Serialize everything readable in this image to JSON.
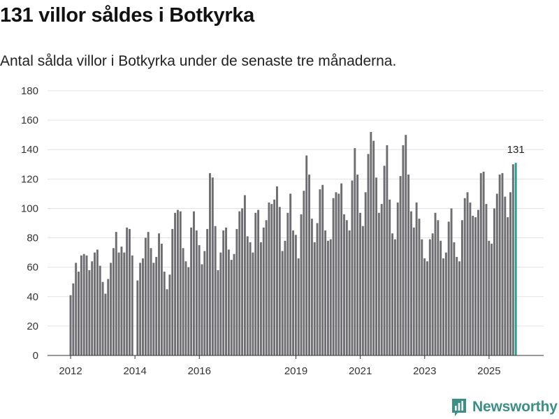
{
  "chart_data": {
    "type": "bar",
    "title": "131 villor såldes i Botkyrka",
    "subtitle": "Antal sålda villor i Botkyrka under de senaste tre månaderna.",
    "xlabel": "",
    "ylabel": "",
    "ylim": [
      0,
      180
    ],
    "yticks": [
      0,
      20,
      40,
      60,
      80,
      100,
      120,
      140,
      160,
      180
    ],
    "xticks": [
      "2012",
      "2014",
      "2016",
      "2019",
      "2021",
      "2023",
      "2025"
    ],
    "grid": true,
    "colors": {
      "bar": "#6e6d72",
      "highlight": "#2a9d8f",
      "grid": "#e3e3e3",
      "axis": "#333333"
    },
    "highlight_label": "131",
    "series": [
      {
        "name": "",
        "segments": [
          {
            "start": 2012.0,
            "values": [
              41,
              49,
              63,
              57,
              68,
              69,
              68,
              58,
              64,
              70,
              72,
              61,
              50,
              42,
              52,
              63,
              73,
              84,
              70,
              74,
              70,
              87,
              86,
              68
            ]
          },
          {
            "start": 2014.08,
            "values": [
              51,
              63,
              66,
              80,
              84,
              73,
              63,
              67,
              83,
              76,
              57,
              45,
              55,
              86,
              97,
              99,
              98,
              73,
              64,
              60,
              87,
              98,
              85,
              75,
              62,
              71,
              86,
              124,
              121,
              88,
              58,
              70,
              85,
              87,
              72,
              65,
              69,
              86,
              98,
              100,
              109,
              81,
              77,
              70,
              97,
              99,
              77,
              87,
              92,
              104,
              103,
              106,
              115,
              101,
              71,
              78,
              97,
              110,
              85,
              82,
              66,
              96,
              112,
              136,
              123,
              93,
              77,
              90,
              113,
              116,
              85,
              78,
              79,
              107,
              111,
              110,
              117,
              96,
              92,
              85,
              119,
              141,
              123,
              97,
              88,
              111,
              137,
              152,
              146,
              121,
              97,
              103,
              129,
              143,
              106,
              83,
              79,
              104,
              122,
              143,
              150,
              123,
              98,
              87,
              104,
              93,
              79,
              66,
              64,
              79,
              83,
              97,
              92,
              78,
              66,
              70,
              91,
              100,
              77,
              67,
              64,
              92,
              107,
              111,
              104,
              95,
              94,
              99,
              124,
              125,
              103,
              78,
              76,
              100,
              110,
              123,
              124,
              108,
              94,
              111,
              130,
              131
            ]
          }
        ]
      }
    ]
  },
  "brand": {
    "name": "Newsworthy",
    "icon": "newsworthy-logo-icon"
  }
}
